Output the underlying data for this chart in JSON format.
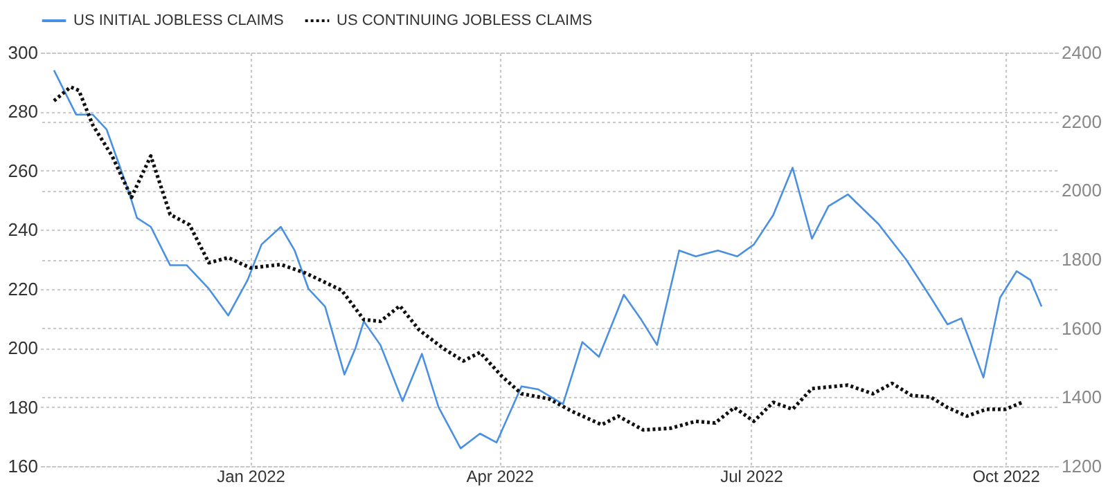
{
  "chart_data": {
    "type": "line",
    "legend": "top left",
    "grid": true,
    "xlim": [
      "2021-10-17",
      "2022-10-20"
    ],
    "xticks": [
      {
        "value": "2022-01-01",
        "label": "Jan 2022"
      },
      {
        "value": "2022-04-01",
        "label": "Apr 2022"
      },
      {
        "value": "2022-07-01",
        "label": "Jul 2022"
      },
      {
        "value": "2022-10-01",
        "label": "Oct 2022"
      }
    ],
    "ylim": [
      160,
      300
    ],
    "yticks": [
      160,
      180,
      200,
      220,
      240,
      260,
      280,
      300
    ],
    "y2lim": [
      1200,
      2400
    ],
    "y2ticks": [
      1200,
      1400,
      1600,
      1800,
      2000,
      2200,
      2400
    ],
    "series": [
      {
        "name": "US INITIAL JOBLESS CLAIMS",
        "color": "#4a90e2",
        "line_style": "solid",
        "x": [
          "2021-10-22",
          "2021-10-30",
          "2021-11-05",
          "2021-11-10",
          "2021-11-18",
          "2021-11-21",
          "2021-11-26",
          "2021-12-03",
          "2021-12-09",
          "2021-12-17",
          "2021-12-24",
          "2021-12-31",
          "2022-01-05",
          "2022-01-12",
          "2022-01-17",
          "2022-01-22",
          "2022-01-28",
          "2022-02-04",
          "2022-02-08",
          "2022-02-11",
          "2022-02-17",
          "2022-02-25",
          "2022-03-04",
          "2022-03-10",
          "2022-03-18",
          "2022-03-25",
          "2022-03-31",
          "2022-04-09",
          "2022-04-15",
          "2022-04-24",
          "2022-05-01",
          "2022-05-07",
          "2022-05-16",
          "2022-05-22",
          "2022-05-28",
          "2022-06-05",
          "2022-06-11",
          "2022-06-19",
          "2022-06-26",
          "2022-07-02",
          "2022-07-09",
          "2022-07-16",
          "2022-07-23",
          "2022-07-29",
          "2022-08-05",
          "2022-08-16",
          "2022-08-26",
          "2022-09-04",
          "2022-09-10",
          "2022-09-15",
          "2022-09-23",
          "2022-09-29",
          "2022-10-05",
          "2022-10-10",
          "2022-10-14"
        ],
        "values": [
          294,
          279,
          279,
          274,
          253,
          244,
          241,
          228,
          228,
          220,
          211,
          223,
          235,
          241,
          233,
          220,
          214,
          191,
          200,
          209,
          201,
          182,
          198,
          180,
          166,
          171,
          168,
          187,
          186,
          181,
          202,
          197,
          218,
          210,
          201,
          233,
          231,
          233,
          231,
          235,
          245,
          261,
          237,
          248,
          252,
          242,
          230,
          217,
          208,
          210,
          190,
          217,
          226,
          223,
          214
        ]
      },
      {
        "name": "US CONTINUING JOBLESS CLAIMS",
        "color": "#111111",
        "line_style": "dotted",
        "axis": "y2",
        "x": [
          "2021-10-22",
          "2021-10-28",
          "2021-10-31",
          "2021-11-05",
          "2021-11-12",
          "2021-11-19",
          "2021-11-26",
          "2021-12-03",
          "2021-12-10",
          "2021-12-17",
          "2021-12-24",
          "2022-01-01",
          "2022-01-12",
          "2022-01-21",
          "2022-02-03",
          "2022-02-11",
          "2022-02-17",
          "2022-02-24",
          "2022-03-03",
          "2022-03-12",
          "2022-03-19",
          "2022-03-25",
          "2022-04-02",
          "2022-04-09",
          "2022-04-19",
          "2022-04-27",
          "2022-05-08",
          "2022-05-14",
          "2022-05-23",
          "2022-06-02",
          "2022-06-11",
          "2022-06-18",
          "2022-06-25",
          "2022-07-02",
          "2022-07-09",
          "2022-07-16",
          "2022-07-23",
          "2022-08-05",
          "2022-08-14",
          "2022-08-21",
          "2022-08-28",
          "2022-09-04",
          "2022-09-10",
          "2022-09-17",
          "2022-09-24",
          "2022-10-01",
          "2022-10-07"
        ],
        "values": [
          2260,
          2300,
          2290,
          2190,
          2100,
          1980,
          2100,
          1930,
          1900,
          1790,
          1805,
          1775,
          1785,
          1760,
          1710,
          1625,
          1620,
          1665,
          1595,
          1540,
          1505,
          1530,
          1460,
          1410,
          1395,
          1360,
          1320,
          1345,
          1305,
          1310,
          1330,
          1325,
          1370,
          1330,
          1385,
          1365,
          1425,
          1435,
          1410,
          1440,
          1405,
          1400,
          1370,
          1345,
          1365,
          1365,
          1385
        ]
      }
    ]
  }
}
